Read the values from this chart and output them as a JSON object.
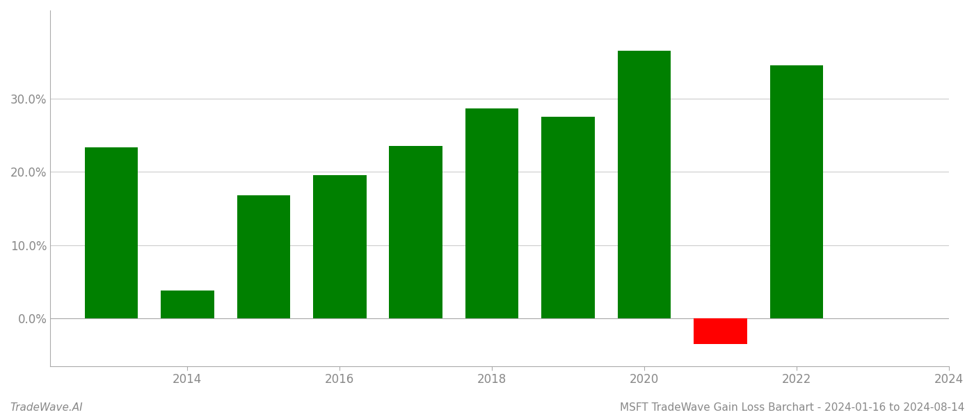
{
  "years": [
    2013,
    2014,
    2015,
    2016,
    2017,
    2018,
    2019,
    2020,
    2021,
    2022
  ],
  "values": [
    0.233,
    0.038,
    0.168,
    0.195,
    0.235,
    0.286,
    0.275,
    0.365,
    -0.035,
    0.345
  ],
  "colors": [
    "#008000",
    "#008000",
    "#008000",
    "#008000",
    "#008000",
    "#008000",
    "#008000",
    "#008000",
    "#ff0000",
    "#008000"
  ],
  "title": "MSFT TradeWave Gain Loss Barchart - 2024-01-16 to 2024-08-14",
  "watermark": "TradeWave.AI",
  "ylim_min": -0.065,
  "ylim_max": 0.42,
  "yticks": [
    0.0,
    0.1,
    0.2,
    0.3
  ],
  "bar_width": 0.7,
  "background_color": "#ffffff",
  "grid_color": "#cccccc",
  "axis_color": "#aaaaaa",
  "tick_color": "#888888",
  "title_fontsize": 11,
  "watermark_fontsize": 11,
  "xticks": [
    2014,
    2016,
    2018,
    2020,
    2022,
    2024
  ],
  "xlim_min": 2012.2,
  "xlim_max": 2023.3
}
